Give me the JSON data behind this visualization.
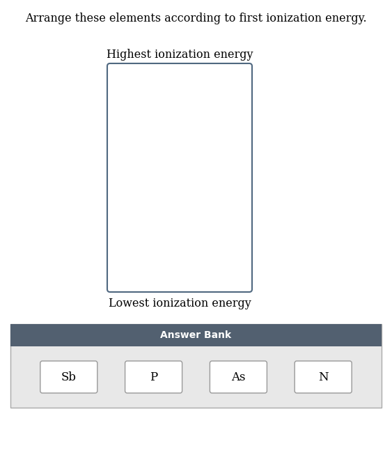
{
  "title": "Arrange these elements according to first ionization energy.",
  "title_fontsize": 11.5,
  "highest_label": "Highest ionization energy",
  "lowest_label": "Lowest ionization energy",
  "answer_bank_label": "Answer Bank",
  "elements": [
    "Sb",
    "P",
    "As",
    "N"
  ],
  "bg_color": "#ffffff",
  "box_edge_color": "#4f6880",
  "answer_bank_header_color": "#526070",
  "element_box_color": "#999999",
  "label_fontsize": 11.5,
  "answer_bank_fontsize": 10,
  "element_fontsize": 12,
  "fig_width": 5.63,
  "fig_height": 6.73,
  "dpi": 100
}
